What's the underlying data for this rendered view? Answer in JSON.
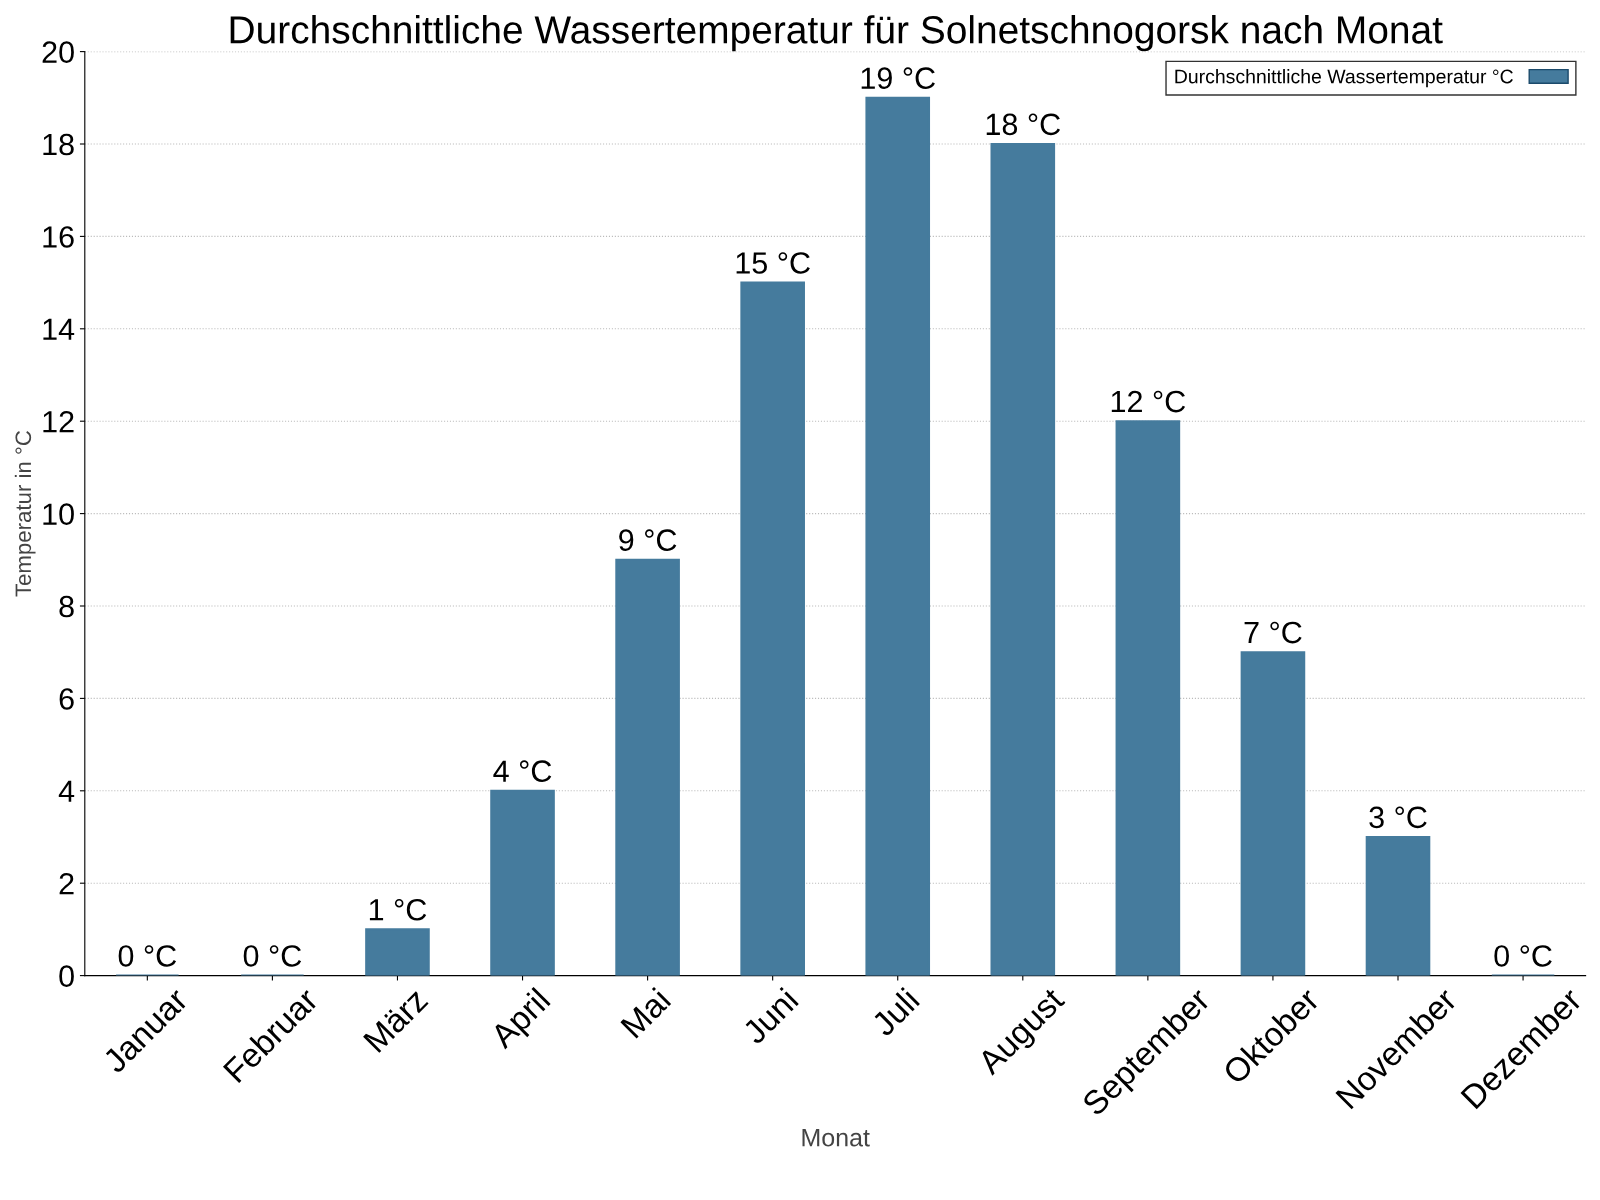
{
  "chart_data": {
    "type": "bar",
    "title": "Durchschnittliche Wassertemperatur für Solnetschnogorsk nach Monat",
    "xlabel": "Monat",
    "ylabel": "Temperatur in °C",
    "categories": [
      "Januar",
      "Februar",
      "März",
      "April",
      "Mai",
      "Juni",
      "Juli",
      "August",
      "September",
      "Oktober",
      "November",
      "Dezember"
    ],
    "series": [
      {
        "name": "Durchschnittliche Wassertemperatur °C",
        "color": "#457b9d",
        "values": [
          0,
          0,
          1,
          4,
          9,
          15,
          19,
          18,
          12,
          7,
          3,
          0
        ],
        "value_labels": [
          "0 °C",
          "0 °C",
          "1 °C",
          "4 °C",
          "9 °C",
          "15 °C",
          "19 °C",
          "18 °C",
          "12 °C",
          "7 °C",
          "3 °C",
          "0 °C"
        ]
      }
    ],
    "ylim": [
      0,
      20
    ],
    "yticks": [
      0,
      2,
      4,
      6,
      8,
      10,
      12,
      14,
      16,
      18,
      20
    ],
    "grid": "y",
    "legend": "top right"
  }
}
